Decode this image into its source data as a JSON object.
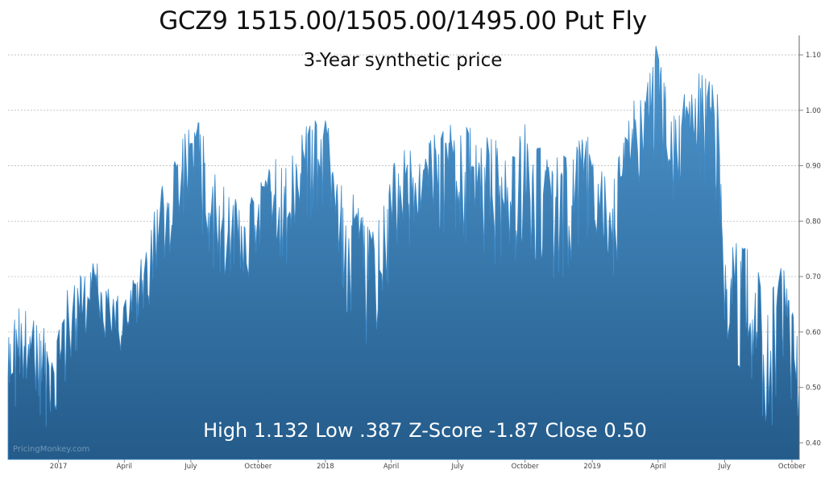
{
  "chart_data": {
    "type": "area",
    "title": "GCZ9 1515.00/1505.00/1495.00 Put Fly",
    "subtitle": "3-Year synthetic price",
    "annotation": "High 1.132 Low .387 Z-Score -1.87 Close 0.50",
    "watermark": "PricingMonkey.com",
    "xlabel": "",
    "ylabel": "",
    "ylim": [
      0.37,
      1.135
    ],
    "y_axis_position": "right",
    "grid": "horizontal dotted",
    "x_tick_labels": [
      "2017",
      "April",
      "July",
      "October",
      "2018",
      "April",
      "July",
      "October",
      "2019",
      "April",
      "July",
      "October"
    ],
    "y_tick_labels": [
      "0.40",
      "0.50",
      "0.60",
      "0.70",
      "0.80",
      "0.90",
      "1.00",
      "1.10"
    ],
    "x_range": [
      "2016-10-24",
      "2019-10-11"
    ],
    "envelope": {
      "x": [
        "2016-10-24",
        "2016-11-10",
        "2016-12-01",
        "2016-12-20",
        "2017-01-10",
        "2017-02-01",
        "2017-02-20",
        "2017-03-10",
        "2017-04-01",
        "2017-04-20",
        "2017-05-10",
        "2017-06-01",
        "2017-06-20",
        "2017-07-10",
        "2017-08-01",
        "2017-08-20",
        "2017-09-10",
        "2017-10-01",
        "2017-10-20",
        "2017-11-10",
        "2017-12-01",
        "2017-12-20",
        "2018-01-10",
        "2018-02-01",
        "2018-02-20",
        "2018-03-10",
        "2018-04-01",
        "2018-04-20",
        "2018-05-10",
        "2018-06-01",
        "2018-06-20",
        "2018-07-10",
        "2018-08-01",
        "2018-08-20",
        "2018-09-10",
        "2018-10-01",
        "2018-10-20",
        "2018-11-10",
        "2018-12-01",
        "2018-12-20",
        "2019-01-10",
        "2019-02-01",
        "2019-02-20",
        "2019-03-10",
        "2019-04-01",
        "2019-04-20",
        "2019-05-10",
        "2019-06-01",
        "2019-06-20",
        "2019-07-01",
        "2019-07-20",
        "2019-08-10",
        "2019-09-01",
        "2019-09-20",
        "2019-10-11"
      ],
      "high": [
        0.62,
        0.66,
        0.64,
        0.6,
        0.68,
        0.72,
        0.74,
        0.7,
        0.68,
        0.72,
        0.84,
        0.88,
        0.98,
        1.0,
        0.9,
        0.88,
        0.84,
        0.86,
        0.92,
        0.9,
        0.96,
        1.02,
        0.98,
        0.86,
        0.84,
        0.78,
        0.9,
        0.94,
        0.92,
        0.96,
        0.98,
        0.98,
        0.96,
        0.96,
        0.92,
        0.98,
        0.96,
        0.92,
        0.92,
        0.98,
        0.9,
        0.9,
        1.0,
        1.06,
        1.13,
        1.0,
        1.06,
        1.1,
        1.06,
        0.74,
        0.8,
        0.72,
        0.68,
        0.76,
        0.66
      ],
      "low": [
        0.41,
        0.48,
        0.45,
        0.42,
        0.5,
        0.55,
        0.6,
        0.58,
        0.52,
        0.55,
        0.68,
        0.74,
        0.8,
        0.78,
        0.7,
        0.7,
        0.66,
        0.68,
        0.74,
        0.72,
        0.78,
        0.82,
        0.76,
        0.62,
        0.58,
        0.58,
        0.7,
        0.74,
        0.72,
        0.76,
        0.78,
        0.76,
        0.72,
        0.72,
        0.66,
        0.74,
        0.72,
        0.68,
        0.7,
        0.76,
        0.7,
        0.7,
        0.8,
        0.86,
        0.9,
        0.82,
        0.86,
        0.86,
        0.82,
        0.48,
        0.52,
        0.46,
        0.42,
        0.48,
        0.44
      ]
    },
    "close": 0.5,
    "colors": {
      "area_top": "#4e97cf",
      "area_bottom": "#245b8a",
      "line": "#3f8ccb"
    }
  }
}
